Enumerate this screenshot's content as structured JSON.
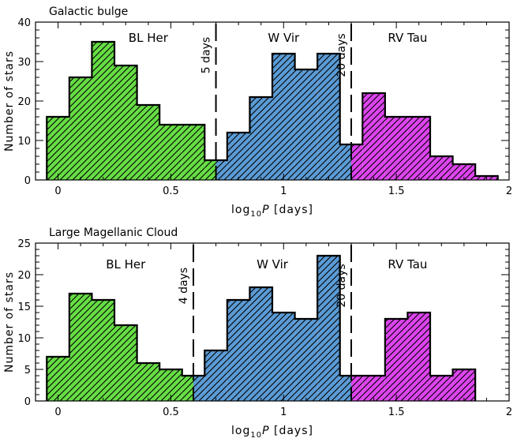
{
  "chart_data": [
    {
      "type": "histogram",
      "title": "Galactic bulge",
      "xlabel": "log10P [days]",
      "ylabel": "Number of stars",
      "xlim": [
        -0.1,
        2.0
      ],
      "ylim": [
        0,
        40
      ],
      "xticks": [
        0,
        0.5,
        1,
        1.5,
        2
      ],
      "xtick_labels": [
        "0",
        "0.5",
        "1",
        "1.5",
        "2"
      ],
      "yticks": [
        0,
        10,
        20,
        30,
        40
      ],
      "ytick_labels": [
        "0",
        "10",
        "20",
        "30",
        "40"
      ],
      "bin_width": 0.1,
      "bins": [
        {
          "x0": -0.05,
          "x1": 0.05,
          "count": 16,
          "class": "BL Her"
        },
        {
          "x0": 0.05,
          "x1": 0.15,
          "count": 26,
          "class": "BL Her"
        },
        {
          "x0": 0.15,
          "x1": 0.25,
          "count": 35,
          "class": "BL Her"
        },
        {
          "x0": 0.25,
          "x1": 0.35,
          "count": 29,
          "class": "BL Her"
        },
        {
          "x0": 0.35,
          "x1": 0.45,
          "count": 19,
          "class": "BL Her"
        },
        {
          "x0": 0.45,
          "x1": 0.55,
          "count": 14,
          "class": "BL Her"
        },
        {
          "x0": 0.55,
          "x1": 0.65,
          "count": 14,
          "class": "BL Her"
        },
        {
          "x0": 0.65,
          "x1": 0.7,
          "count": 5,
          "class": "BL Her"
        },
        {
          "x0": 0.7,
          "x1": 0.75,
          "count": 5,
          "class": "W Vir"
        },
        {
          "x0": 0.75,
          "x1": 0.85,
          "count": 12,
          "class": "W Vir"
        },
        {
          "x0": 0.85,
          "x1": 0.95,
          "count": 21,
          "class": "W Vir"
        },
        {
          "x0": 0.95,
          "x1": 1.05,
          "count": 32,
          "class": "W Vir"
        },
        {
          "x0": 1.05,
          "x1": 1.15,
          "count": 28,
          "class": "W Vir"
        },
        {
          "x0": 1.15,
          "x1": 1.25,
          "count": 32,
          "class": "W Vir"
        },
        {
          "x0": 1.25,
          "x1": 1.3,
          "count": 9,
          "class": "W Vir"
        },
        {
          "x0": 1.3,
          "x1": 1.35,
          "count": 9,
          "class": "RV Tau"
        },
        {
          "x0": 1.35,
          "x1": 1.45,
          "count": 22,
          "class": "RV Tau"
        },
        {
          "x0": 1.45,
          "x1": 1.55,
          "count": 16,
          "class": "RV Tau"
        },
        {
          "x0": 1.55,
          "x1": 1.65,
          "count": 16,
          "class": "RV Tau"
        },
        {
          "x0": 1.65,
          "x1": 1.75,
          "count": 6,
          "class": "RV Tau"
        },
        {
          "x0": 1.75,
          "x1": 1.85,
          "count": 4,
          "class": "RV Tau"
        },
        {
          "x0": 1.85,
          "x1": 1.95,
          "count": 1,
          "class": "RV Tau"
        }
      ],
      "boundaries": [
        {
          "x": 0.7,
          "label": "5 days"
        },
        {
          "x": 1.3,
          "label": "20 days"
        }
      ],
      "region_labels": [
        {
          "text": "BL Her",
          "x": 0.4
        },
        {
          "text": "W Vir",
          "x": 1.0
        },
        {
          "text": "RV Tau",
          "x": 1.55
        }
      ]
    },
    {
      "type": "histogram",
      "title": "Large Magellanic Cloud",
      "xlabel": "log10P [days]",
      "ylabel": "Number of stars",
      "xlim": [
        -0.1,
        2.0
      ],
      "ylim": [
        0,
        25
      ],
      "xticks": [
        0,
        0.5,
        1,
        1.5,
        2
      ],
      "xtick_labels": [
        "0",
        "0.5",
        "1",
        "1.5",
        "2"
      ],
      "yticks": [
        0,
        5,
        10,
        15,
        20,
        25
      ],
      "ytick_labels": [
        "0",
        "5",
        "10",
        "15",
        "20",
        "25"
      ],
      "bin_width": 0.1,
      "bins": [
        {
          "x0": -0.05,
          "x1": 0.05,
          "count": 7,
          "class": "BL Her"
        },
        {
          "x0": 0.05,
          "x1": 0.15,
          "count": 17,
          "class": "BL Her"
        },
        {
          "x0": 0.15,
          "x1": 0.25,
          "count": 16,
          "class": "BL Her"
        },
        {
          "x0": 0.25,
          "x1": 0.35,
          "count": 12,
          "class": "BL Her"
        },
        {
          "x0": 0.35,
          "x1": 0.45,
          "count": 6,
          "class": "BL Her"
        },
        {
          "x0": 0.45,
          "x1": 0.55,
          "count": 5,
          "class": "BL Her"
        },
        {
          "x0": 0.55,
          "x1": 0.6,
          "count": 4,
          "class": "BL Her"
        },
        {
          "x0": 0.6,
          "x1": 0.65,
          "count": 4,
          "class": "W Vir"
        },
        {
          "x0": 0.65,
          "x1": 0.75,
          "count": 8,
          "class": "W Vir"
        },
        {
          "x0": 0.75,
          "x1": 0.85,
          "count": 16,
          "class": "W Vir"
        },
        {
          "x0": 0.85,
          "x1": 0.95,
          "count": 18,
          "class": "W Vir"
        },
        {
          "x0": 0.95,
          "x1": 1.05,
          "count": 14,
          "class": "W Vir"
        },
        {
          "x0": 1.05,
          "x1": 1.15,
          "count": 13,
          "class": "W Vir"
        },
        {
          "x0": 1.15,
          "x1": 1.25,
          "count": 23,
          "class": "W Vir"
        },
        {
          "x0": 1.25,
          "x1": 1.3,
          "count": 4,
          "class": "W Vir"
        },
        {
          "x0": 1.3,
          "x1": 1.35,
          "count": 4,
          "class": "RV Tau"
        },
        {
          "x0": 1.35,
          "x1": 1.45,
          "count": 4,
          "class": "RV Tau"
        },
        {
          "x0": 1.45,
          "x1": 1.55,
          "count": 13,
          "class": "RV Tau"
        },
        {
          "x0": 1.55,
          "x1": 1.65,
          "count": 14,
          "class": "RV Tau"
        },
        {
          "x0": 1.65,
          "x1": 1.75,
          "count": 4,
          "class": "RV Tau"
        },
        {
          "x0": 1.75,
          "x1": 1.85,
          "count": 5,
          "class": "RV Tau"
        }
      ],
      "boundaries": [
        {
          "x": 0.6,
          "label": "4 days"
        },
        {
          "x": 1.3,
          "label": "20 days"
        }
      ],
      "region_labels": [
        {
          "text": "BL Her",
          "x": 0.3
        },
        {
          "text": "W Vir",
          "x": 0.95
        },
        {
          "text": "RV Tau",
          "x": 1.55
        }
      ]
    }
  ],
  "class_colors": {
    "BL Her": "#66dd44",
    "W Vir": "#5b9bd5",
    "RV Tau": "#dd44ee"
  },
  "hatch_color": "#000000",
  "line_color": "#000000"
}
